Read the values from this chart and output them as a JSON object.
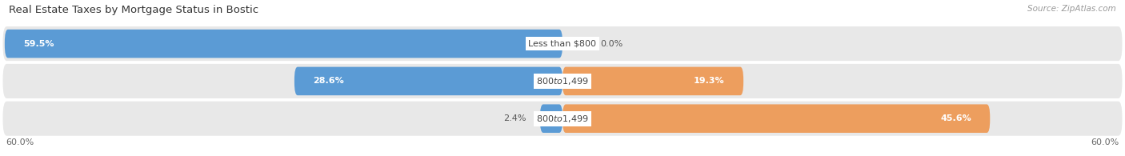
{
  "title": "Real Estate Taxes by Mortgage Status in Bostic",
  "source": "Source: ZipAtlas.com",
  "rows": [
    {
      "label": "Less than $800",
      "without_mortgage": 59.5,
      "with_mortgage": 0.0,
      "wm_label_inside": true,
      "wth_label_inside": false
    },
    {
      "label": "$800 to $1,499",
      "without_mortgage": 28.6,
      "with_mortgage": 19.3,
      "wm_label_inside": false,
      "wth_label_inside": false
    },
    {
      "label": "$800 to $1,499",
      "without_mortgage": 2.4,
      "with_mortgage": 45.6,
      "wm_label_inside": false,
      "wth_label_inside": true
    }
  ],
  "x_max": 60.0,
  "color_without": "#5b9bd5",
  "color_with": "#ed9e5e",
  "color_without_light": "#aec9e8",
  "color_with_light": "#f7cfa5",
  "bg_bar": "#e8e8e8",
  "title_fontsize": 9.5,
  "label_fontsize": 8,
  "tick_fontsize": 8,
  "legend_fontsize": 8.5,
  "source_fontsize": 7.5
}
